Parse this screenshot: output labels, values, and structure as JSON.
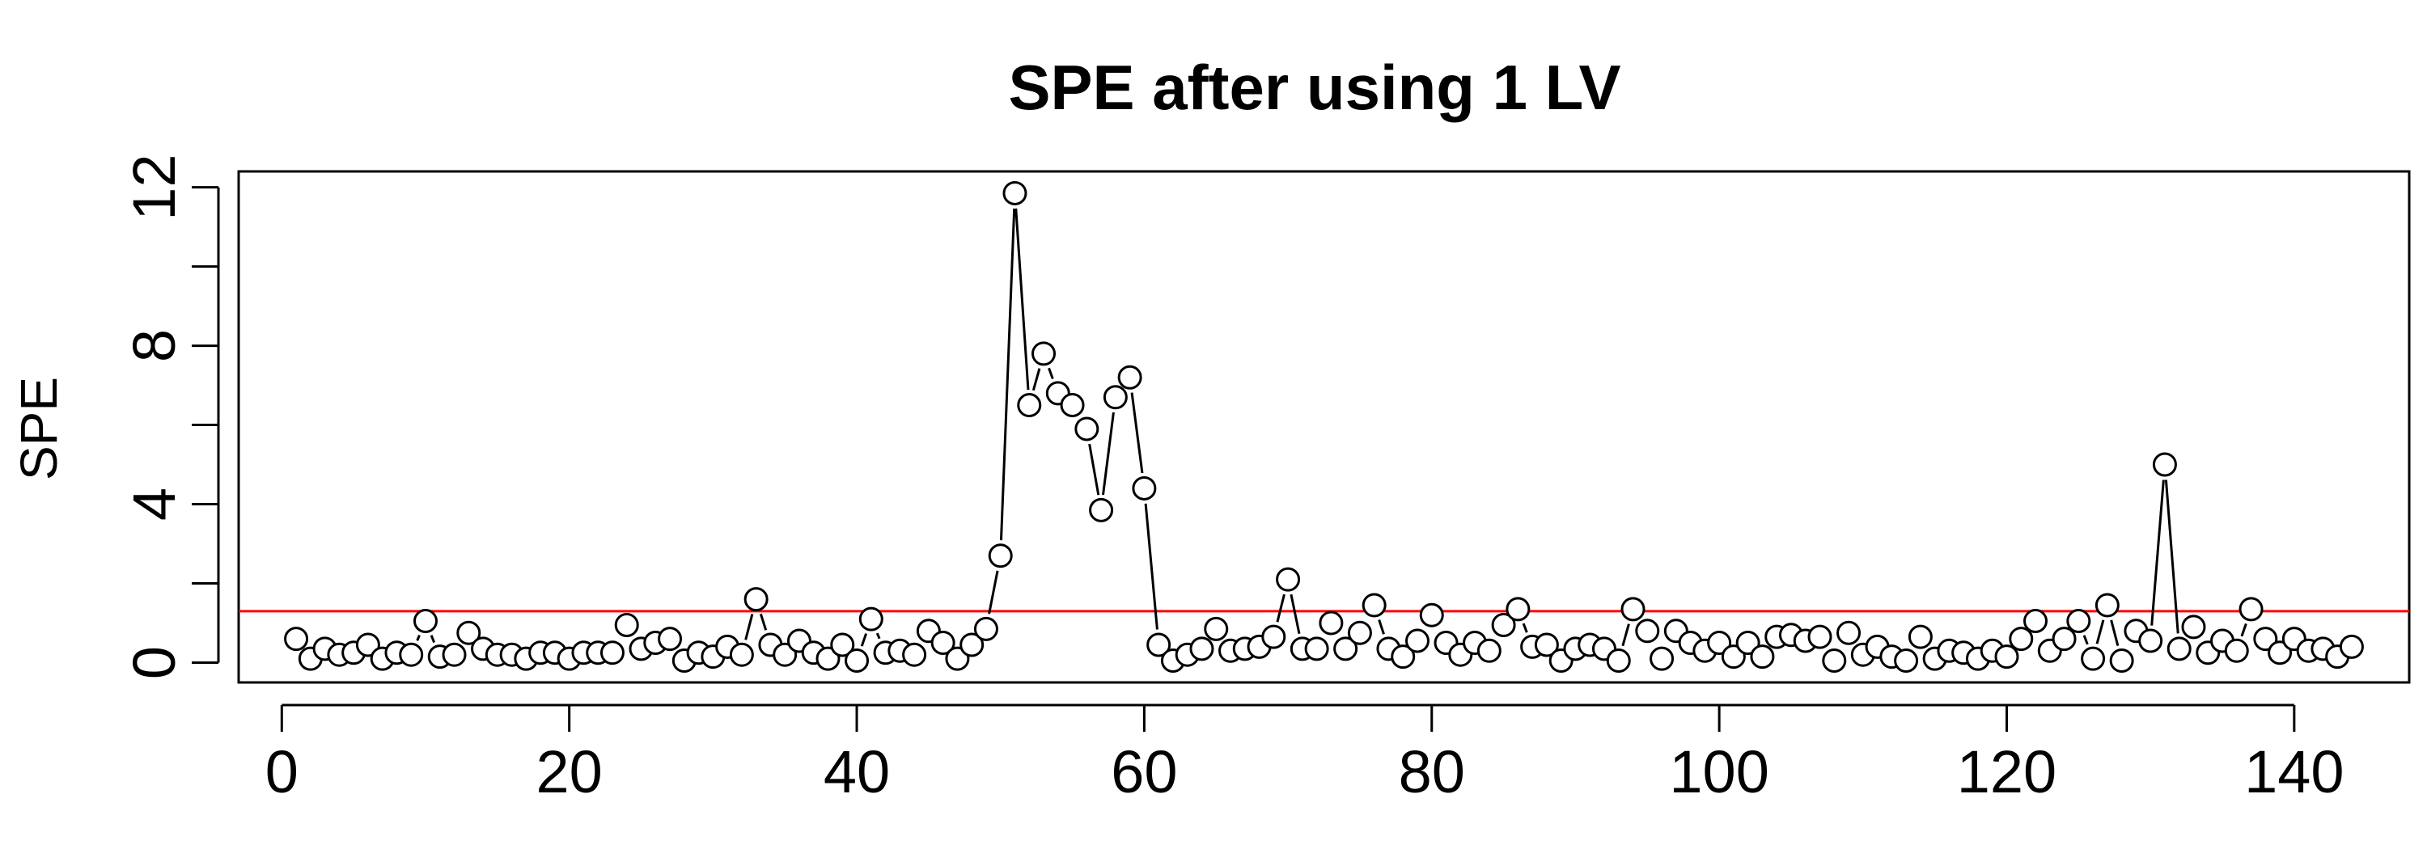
{
  "chart_data": {
    "type": "line",
    "title": "SPE after using 1 LV",
    "xlabel": "",
    "ylabel": "SPE",
    "xlim": [
      -3,
      148
    ],
    "ylim": [
      -0.5,
      12.4
    ],
    "xticks": [
      0,
      20,
      40,
      60,
      80,
      100,
      120,
      140
    ],
    "yticks": [
      0,
      4,
      8,
      12
    ],
    "y_minor_ticks": [
      2,
      6,
      10
    ],
    "threshold": 1.3,
    "colors": {
      "points": "#000000",
      "threshold": "#ff0000"
    },
    "x": [
      1,
      2,
      3,
      4,
      5,
      6,
      7,
      8,
      9,
      10,
      11,
      12,
      13,
      14,
      15,
      16,
      17,
      18,
      19,
      20,
      21,
      22,
      23,
      24,
      25,
      26,
      27,
      28,
      29,
      30,
      31,
      32,
      33,
      34,
      35,
      36,
      37,
      38,
      39,
      40,
      41,
      42,
      43,
      44,
      45,
      46,
      47,
      48,
      49,
      50,
      51,
      52,
      53,
      54,
      55,
      56,
      57,
      58,
      59,
      60,
      61,
      62,
      63,
      64,
      65,
      66,
      67,
      68,
      69,
      70,
      71,
      72,
      73,
      74,
      75,
      76,
      77,
      78,
      79,
      80,
      81,
      82,
      83,
      84,
      85,
      86,
      87,
      88,
      89,
      90,
      91,
      92,
      93,
      94,
      95,
      96,
      97,
      98,
      99,
      100,
      101,
      102,
      103,
      104,
      105,
      106,
      107,
      108,
      109,
      110,
      111,
      112,
      113,
      114,
      115,
      116,
      117,
      118,
      119,
      120,
      121,
      122,
      123,
      124,
      125,
      126,
      127,
      128,
      129,
      130,
      131,
      132,
      133,
      134,
      135,
      136,
      137,
      138,
      139,
      140,
      141,
      142,
      143,
      144
    ],
    "values": [
      0.6,
      0.1,
      0.35,
      0.2,
      0.25,
      0.45,
      0.1,
      0.25,
      0.2,
      1.05,
      0.15,
      0.2,
      0.75,
      0.35,
      0.2,
      0.2,
      0.1,
      0.25,
      0.25,
      0.1,
      0.25,
      0.25,
      0.25,
      0.95,
      0.35,
      0.5,
      0.6,
      0.05,
      0.25,
      0.15,
      0.4,
      0.2,
      1.6,
      0.45,
      0.2,
      0.55,
      0.25,
      0.1,
      0.45,
      0.05,
      1.1,
      0.25,
      0.3,
      0.2,
      0.8,
      0.5,
      0.1,
      0.45,
      0.85,
      2.7,
      11.85,
      6.5,
      7.8,
      6.8,
      6.5,
      5.9,
      3.85,
      6.7,
      7.2,
      4.4,
      0.45,
      0.05,
      0.2,
      0.35,
      0.85,
      0.3,
      0.35,
      0.4,
      0.65,
      2.1,
      0.35,
      0.35,
      1.0,
      0.35,
      0.75,
      1.45,
      0.35,
      0.15,
      0.55,
      1.2,
      0.5,
      0.2,
      0.5,
      0.3,
      0.95,
      1.35,
      0.4,
      0.45,
      0.05,
      0.35,
      0.45,
      0.35,
      0.05,
      1.35,
      0.8,
      0.1,
      0.8,
      0.5,
      0.3,
      0.5,
      0.15,
      0.5,
      0.15,
      0.65,
      0.7,
      0.55,
      0.65,
      0.05,
      0.75,
      0.2,
      0.4,
      0.15,
      0.05,
      0.65,
      0.1,
      0.3,
      0.25,
      0.1,
      0.3,
      0.15,
      0.6,
      1.05,
      0.3,
      0.6,
      1.05,
      0.1,
      1.45,
      0.05,
      0.8,
      0.55,
      5.0,
      0.35,
      0.9,
      0.25,
      0.55,
      0.3,
      1.35,
      0.6,
      0.25,
      0.6,
      0.3,
      0.35,
      0.15,
      0.4
    ]
  }
}
